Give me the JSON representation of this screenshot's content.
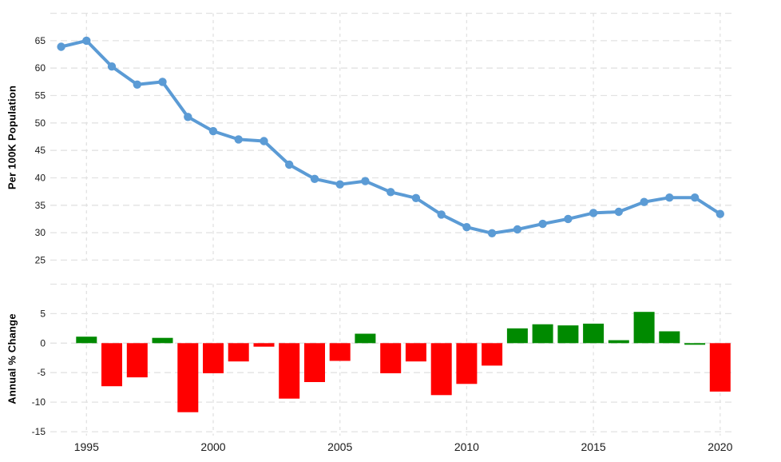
{
  "chart_data": [
    {
      "type": "line",
      "title": "",
      "ylabel": "Per 100K Population",
      "xlabel": "",
      "x": [
        1994,
        1995,
        1996,
        1997,
        1998,
        1999,
        2000,
        2001,
        2002,
        2003,
        2004,
        2005,
        2006,
        2007,
        2008,
        2009,
        2010,
        2011,
        2012,
        2013,
        2014,
        2015,
        2016,
        2017,
        2018,
        2019,
        2020
      ],
      "values": [
        63.9,
        65.0,
        60.3,
        57.0,
        57.5,
        51.1,
        48.5,
        47.0,
        46.7,
        42.4,
        39.8,
        38.8,
        39.4,
        37.4,
        36.3,
        33.3,
        31.0,
        29.9,
        30.6,
        31.6,
        32.5,
        33.6,
        33.8,
        35.6,
        36.4,
        36.4,
        33.4
      ],
      "ylim": [
        23.8,
        70
      ],
      "yticks": [
        25,
        30,
        35,
        40,
        45,
        50,
        55,
        60,
        65
      ],
      "grid_values": [
        70,
        65,
        60,
        55,
        50,
        45,
        40,
        35,
        30,
        25
      ],
      "xticks": [
        1995,
        2000,
        2005,
        2010,
        2015,
        2020
      ],
      "grid": "dashed",
      "legend": "none",
      "line_color": "#5b9bd5",
      "marker": "circle"
    },
    {
      "type": "bar",
      "title": "",
      "ylabel": "Annual % Change",
      "xlabel": "",
      "x": [
        1995,
        1996,
        1997,
        1998,
        1999,
        2000,
        2001,
        2002,
        2003,
        2004,
        2005,
        2006,
        2007,
        2008,
        2009,
        2010,
        2011,
        2012,
        2013,
        2014,
        2015,
        2016,
        2017,
        2018,
        2019,
        2020
      ],
      "values": [
        1.1,
        -7.3,
        -5.8,
        0.9,
        -11.7,
        -5.1,
        -3.1,
        -0.6,
        -9.4,
        -6.6,
        -3.0,
        1.6,
        -5.1,
        -3.1,
        -8.8,
        -6.9,
        -3.8,
        2.5,
        3.2,
        3.0,
        3.3,
        0.5,
        5.3,
        2.0,
        -0.1,
        -8.2
      ],
      "ylim": [
        -16,
        10
      ],
      "yticks": [
        5,
        0,
        -5,
        -10,
        -15
      ],
      "grid_values": [
        10,
        5,
        0,
        -5,
        -10,
        -15
      ],
      "xticks": [
        1995,
        2000,
        2005,
        2010,
        2015,
        2020
      ],
      "grid": "dashed",
      "legend": "none",
      "positive_color": "#008a00",
      "negative_color": "#ff0000",
      "bar_color_overrides": {
        "2019": "#008a00"
      }
    }
  ],
  "style": {
    "background": "#ffffff",
    "grid_color": "#e2e2e2",
    "tick_color": "#1a1a1a",
    "axis_label_color": "#000000"
  }
}
